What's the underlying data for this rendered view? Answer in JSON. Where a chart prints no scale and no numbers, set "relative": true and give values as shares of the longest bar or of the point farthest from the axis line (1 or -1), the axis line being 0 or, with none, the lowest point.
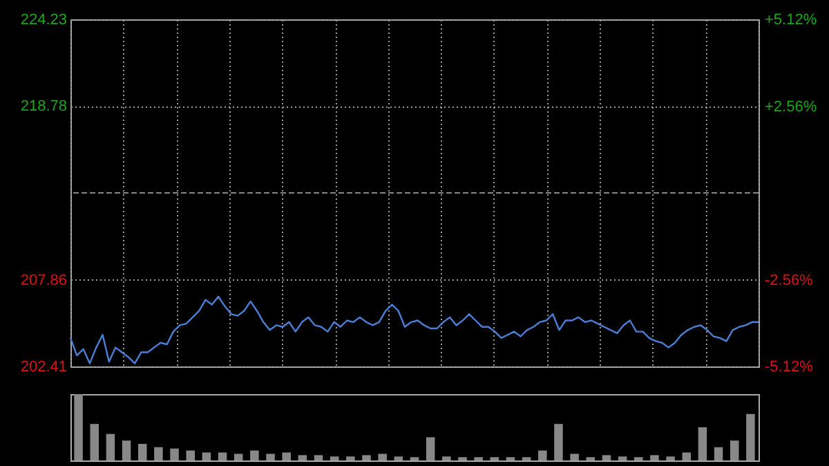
{
  "chart_data": [
    {
      "type": "line",
      "categories": [
        null,
        null,
        null,
        null,
        null,
        null,
        null,
        null,
        null,
        null,
        null,
        null,
        null,
        null,
        null,
        null,
        null,
        null,
        null,
        null,
        null,
        null,
        null,
        null,
        null,
        null,
        null,
        null,
        null,
        null,
        null,
        null,
        null,
        null,
        null,
        null,
        null,
        null,
        null,
        null,
        null,
        null,
        null,
        null,
        null,
        null,
        null,
        null,
        null,
        null,
        null,
        null,
        null,
        null,
        null,
        null,
        null,
        null,
        null,
        null,
        null,
        null,
        null,
        null,
        null,
        null,
        null,
        null,
        null,
        null,
        null,
        null,
        null,
        null,
        null,
        null,
        null,
        null,
        null,
        null,
        null,
        null,
        null,
        null,
        null,
        null,
        null,
        null,
        null,
        null,
        null,
        null,
        null,
        null,
        null,
        null,
        null,
        null,
        null,
        null,
        null,
        null,
        null,
        null,
        null,
        null,
        null,
        null
      ],
      "series": [
        {
          "color": "#4a7fd6",
          "values": [
            204.2,
            203.1,
            203.5,
            202.6,
            203.6,
            204.4,
            202.7,
            203.6,
            203.3,
            203.0,
            202.6,
            203.3,
            203.3,
            203.6,
            203.9,
            203.8,
            204.6,
            205.0,
            205.1,
            205.5,
            205.9,
            206.6,
            206.3,
            206.8,
            206.2,
            205.7,
            205.6,
            205.9,
            206.5,
            205.9,
            205.2,
            204.7,
            205.0,
            204.9,
            205.2,
            204.6,
            205.2,
            205.5,
            205.0,
            204.9,
            204.6,
            205.2,
            204.9,
            205.3,
            205.2,
            205.5,
            205.2,
            205.0,
            205.2,
            205.9,
            206.3,
            205.9,
            204.9,
            205.2,
            205.3,
            205.0,
            204.8,
            204.8,
            205.2,
            205.5,
            205.0,
            205.3,
            205.7,
            205.3,
            204.9,
            204.9,
            204.6,
            204.2,
            204.4,
            204.6,
            204.3,
            204.7,
            204.9,
            205.2,
            205.3,
            205.7,
            204.7,
            205.3,
            205.3,
            205.5,
            205.2,
            205.3,
            205.1,
            204.9,
            204.7,
            204.5,
            205.0,
            205.3,
            204.6,
            204.6,
            204.2,
            204.0,
            203.9,
            203.6,
            203.9,
            204.4,
            204.7,
            204.9,
            205.0,
            204.7,
            204.3,
            204.2,
            204.0,
            204.7,
            204.9,
            205.0,
            205.2,
            205.2
          ]
        }
      ],
      "ylim": [
        202.41,
        224.23
      ],
      "yticks": [
        202.41,
        207.86,
        218.78,
        224.23
      ],
      "y2lim": [
        -5.12,
        5.12
      ],
      "y2ticks": [
        {
          "value": -5.12,
          "label": "-5.12%"
        },
        {
          "value": -2.56,
          "label": "-2.56%"
        },
        {
          "value": 2.56,
          "label": "+2.56%"
        },
        {
          "value": 5.12,
          "label": "+5.12%"
        }
      ],
      "grid": true,
      "tick_labels": "y",
      "ref_lines": [
        {
          "axis": "y",
          "value": 213.32,
          "color": "#888888",
          "line_style": "dashed"
        }
      ]
    },
    {
      "type": "bar",
      "relative": true,
      "categories": [
        null,
        null,
        null,
        null,
        null,
        null,
        null,
        null,
        null,
        null,
        null,
        null,
        null,
        null,
        null,
        null,
        null,
        null,
        null,
        null,
        null,
        null,
        null,
        null,
        null,
        null,
        null,
        null,
        null,
        null,
        null,
        null,
        null,
        null,
        null,
        null,
        null,
        null,
        null,
        null,
        null,
        null,
        null
      ],
      "values": [
        1,
        0.55,
        0.4,
        0.3,
        0.25,
        0.2,
        0.18,
        0.15,
        0.12,
        0.12,
        0.1,
        0.15,
        0.1,
        0.12,
        0.08,
        0.08,
        0.06,
        0.06,
        0.08,
        0.1,
        0.06,
        0.05,
        0.35,
        0.06,
        0.05,
        0.05,
        0.05,
        0.05,
        0.05,
        0.15,
        0.55,
        0.1,
        0.05,
        0.08,
        0.06,
        0.05,
        0.08,
        0.06,
        0.12,
        0.5,
        0.2,
        0.3,
        0.7
      ],
      "color": "#888888"
    }
  ]
}
